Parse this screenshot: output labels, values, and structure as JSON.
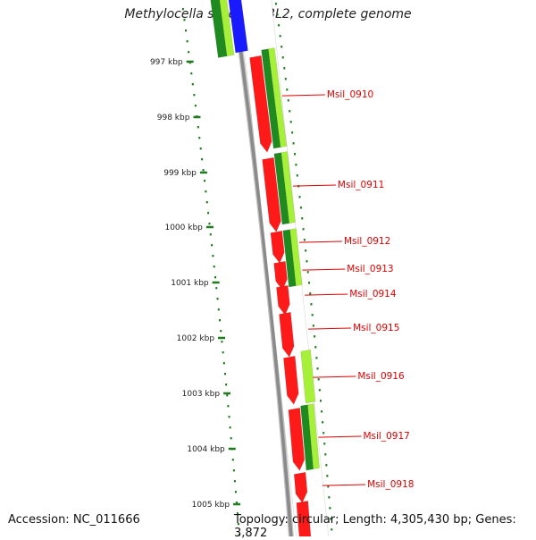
{
  "title": "Methylocella silvestris BL2, complete genome",
  "footer": {
    "accession": "Accession: NC_011666",
    "summary": "Topology: circular; Length: 4,305,430 bp; Genes: 3,872"
  },
  "colors": {
    "backbone": "#8a8a8a",
    "cds": "#ff1a1a",
    "tick": "#1e7b1e",
    "dark_green": "#1f8a1f",
    "light_green": "#a6f03a",
    "blue": "#1a1aff",
    "label": "#e00000"
  },
  "scale_labels": [
    "997 kbp",
    "998 kbp",
    "999 kbp",
    "1000 kbp",
    "1001 kbp",
    "1002 kbp",
    "1003 kbp",
    "1004 kbp",
    "1005 kbp"
  ],
  "genes": [
    "Msil_0910",
    "Msil_0911",
    "Msil_0912",
    "Msil_0913",
    "Msil_0914",
    "Msil_0915",
    "Msil_0916",
    "Msil_0917",
    "Msil_0918"
  ]
}
